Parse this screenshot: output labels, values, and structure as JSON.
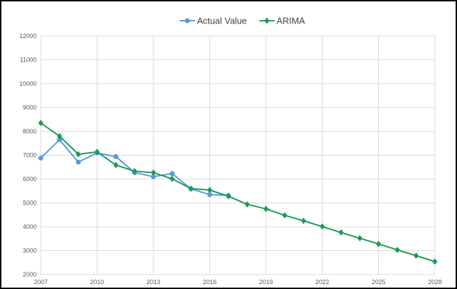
{
  "chart_data": {
    "type": "line",
    "title": "",
    "xlabel": "",
    "ylabel": "",
    "xlim": [
      2007,
      2028
    ],
    "ylim": [
      2000,
      12000
    ],
    "x_ticks": [
      "2007",
      "2010",
      "2013",
      "2016",
      "2019",
      "2022",
      "2025",
      "2028"
    ],
    "y_ticks": [
      "2000",
      "3000",
      "4000",
      "5000",
      "6000",
      "7000",
      "8000",
      "9000",
      "10000",
      "11000",
      "12000"
    ],
    "grid": true,
    "legend_position": "top",
    "series": [
      {
        "name": "Actual Value",
        "color": "#5b9bd5",
        "marker": "circle",
        "x": [
          2007,
          2008,
          2009,
          2010,
          2011,
          2012,
          2013,
          2014,
          2015,
          2016,
          2017
        ],
        "values": [
          6880,
          7650,
          6710,
          7100,
          6940,
          6270,
          6100,
          6230,
          5590,
          5350,
          5310
        ]
      },
      {
        "name": "ARIMA",
        "color": "#1c9a55",
        "marker": "diamond",
        "x": [
          2007,
          2008,
          2009,
          2010,
          2011,
          2012,
          2013,
          2014,
          2015,
          2016,
          2017,
          2018,
          2019,
          2020,
          2021,
          2022,
          2023,
          2024,
          2025,
          2026,
          2027,
          2028
        ],
        "values": [
          8350,
          7800,
          7040,
          7140,
          6590,
          6330,
          6270,
          6010,
          5600,
          5540,
          5280,
          4940,
          4750,
          4480,
          4250,
          4010,
          3760,
          3520,
          3280,
          3030,
          2790,
          2540
        ]
      }
    ]
  }
}
